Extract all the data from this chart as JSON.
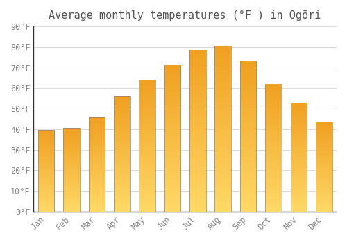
{
  "title": "Average monthly temperatures (°F ) in Ogōri",
  "months": [
    "Jan",
    "Feb",
    "Mar",
    "Apr",
    "May",
    "Jun",
    "Jul",
    "Aug",
    "Sep",
    "Oct",
    "Nov",
    "Dec"
  ],
  "values": [
    39.5,
    40.5,
    46,
    56,
    64,
    71,
    78.5,
    80.5,
    73,
    62,
    52.5,
    43.5
  ],
  "bar_color_bottom": "#FFD966",
  "bar_color_top": "#F0A020",
  "bar_edge_color": "#888888",
  "background_color": "#FFFFFF",
  "grid_color": "#DDDDDD",
  "ylim": [
    0,
    90
  ],
  "yticks": [
    0,
    10,
    20,
    30,
    40,
    50,
    60,
    70,
    80,
    90
  ],
  "tick_label_color": "#888888",
  "title_color": "#555555",
  "title_fontsize": 11,
  "tick_fontsize": 8.5,
  "bar_width": 0.65
}
